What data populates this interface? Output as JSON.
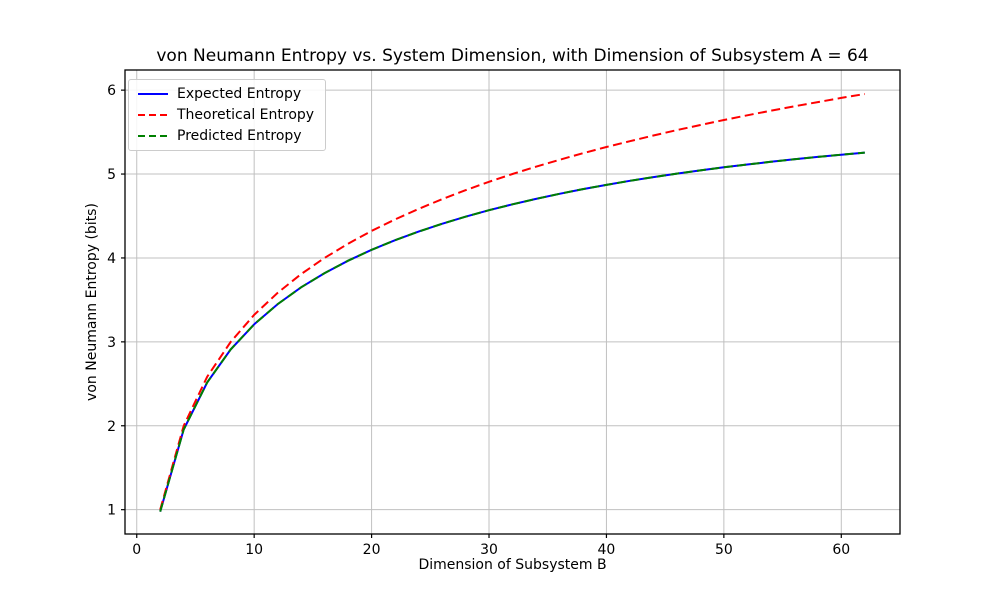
{
  "chart_data": {
    "type": "line",
    "title": "von Neumann Entropy vs. System Dimension, with Dimension of Subsystem A = 64",
    "xlabel": "Dimension of Subsystem B",
    "ylabel": "von Neumann Entropy (bits)",
    "xlim": [
      -1,
      65
    ],
    "ylim": [
      0.71,
      6.24
    ],
    "xticks": [
      0,
      10,
      20,
      30,
      40,
      50,
      60
    ],
    "yticks": [
      1,
      2,
      3,
      4,
      5,
      6
    ],
    "grid": true,
    "grid_color": "#c0c0c0",
    "spine_color": "#000000",
    "legend_position": "upper-left",
    "x": [
      2,
      4,
      6,
      8,
      10,
      12,
      14,
      16,
      18,
      20,
      22,
      24,
      26,
      28,
      30,
      32,
      34,
      36,
      38,
      40,
      42,
      44,
      46,
      48,
      50,
      52,
      54,
      56,
      58,
      60,
      62
    ],
    "series": [
      {
        "name": "Expected Entropy",
        "color": "#0000ff",
        "style": "solid",
        "values": [
          0.977,
          1.955,
          2.517,
          2.91,
          3.209,
          3.45,
          3.65,
          3.82,
          3.967,
          4.097,
          4.211,
          4.314,
          4.407,
          4.492,
          4.569,
          4.639,
          4.704,
          4.764,
          4.82,
          4.871,
          4.919,
          4.964,
          5.005,
          5.044,
          5.08,
          5.114,
          5.146,
          5.176,
          5.204,
          5.231,
          5.255
        ]
      },
      {
        "name": "Theoretical Entropy",
        "color": "#ff0000",
        "style": "dashed",
        "values": [
          1.0,
          2.0,
          2.585,
          3.0,
          3.322,
          3.585,
          3.807,
          4.0,
          4.17,
          4.322,
          4.459,
          4.585,
          4.7,
          4.807,
          4.907,
          5.0,
          5.087,
          5.17,
          5.248,
          5.322,
          5.392,
          5.459,
          5.524,
          5.585,
          5.644,
          5.7,
          5.755,
          5.807,
          5.858,
          5.907,
          5.954
        ]
      },
      {
        "name": "Predicted Entropy",
        "color": "#008000",
        "style": "dashed",
        "values": [
          0.977,
          1.955,
          2.517,
          2.91,
          3.209,
          3.45,
          3.65,
          3.82,
          3.967,
          4.097,
          4.211,
          4.314,
          4.407,
          4.492,
          4.569,
          4.639,
          4.704,
          4.764,
          4.82,
          4.871,
          4.919,
          4.964,
          5.005,
          5.044,
          5.08,
          5.114,
          5.146,
          5.176,
          5.204,
          5.231,
          5.255
        ]
      }
    ]
  }
}
